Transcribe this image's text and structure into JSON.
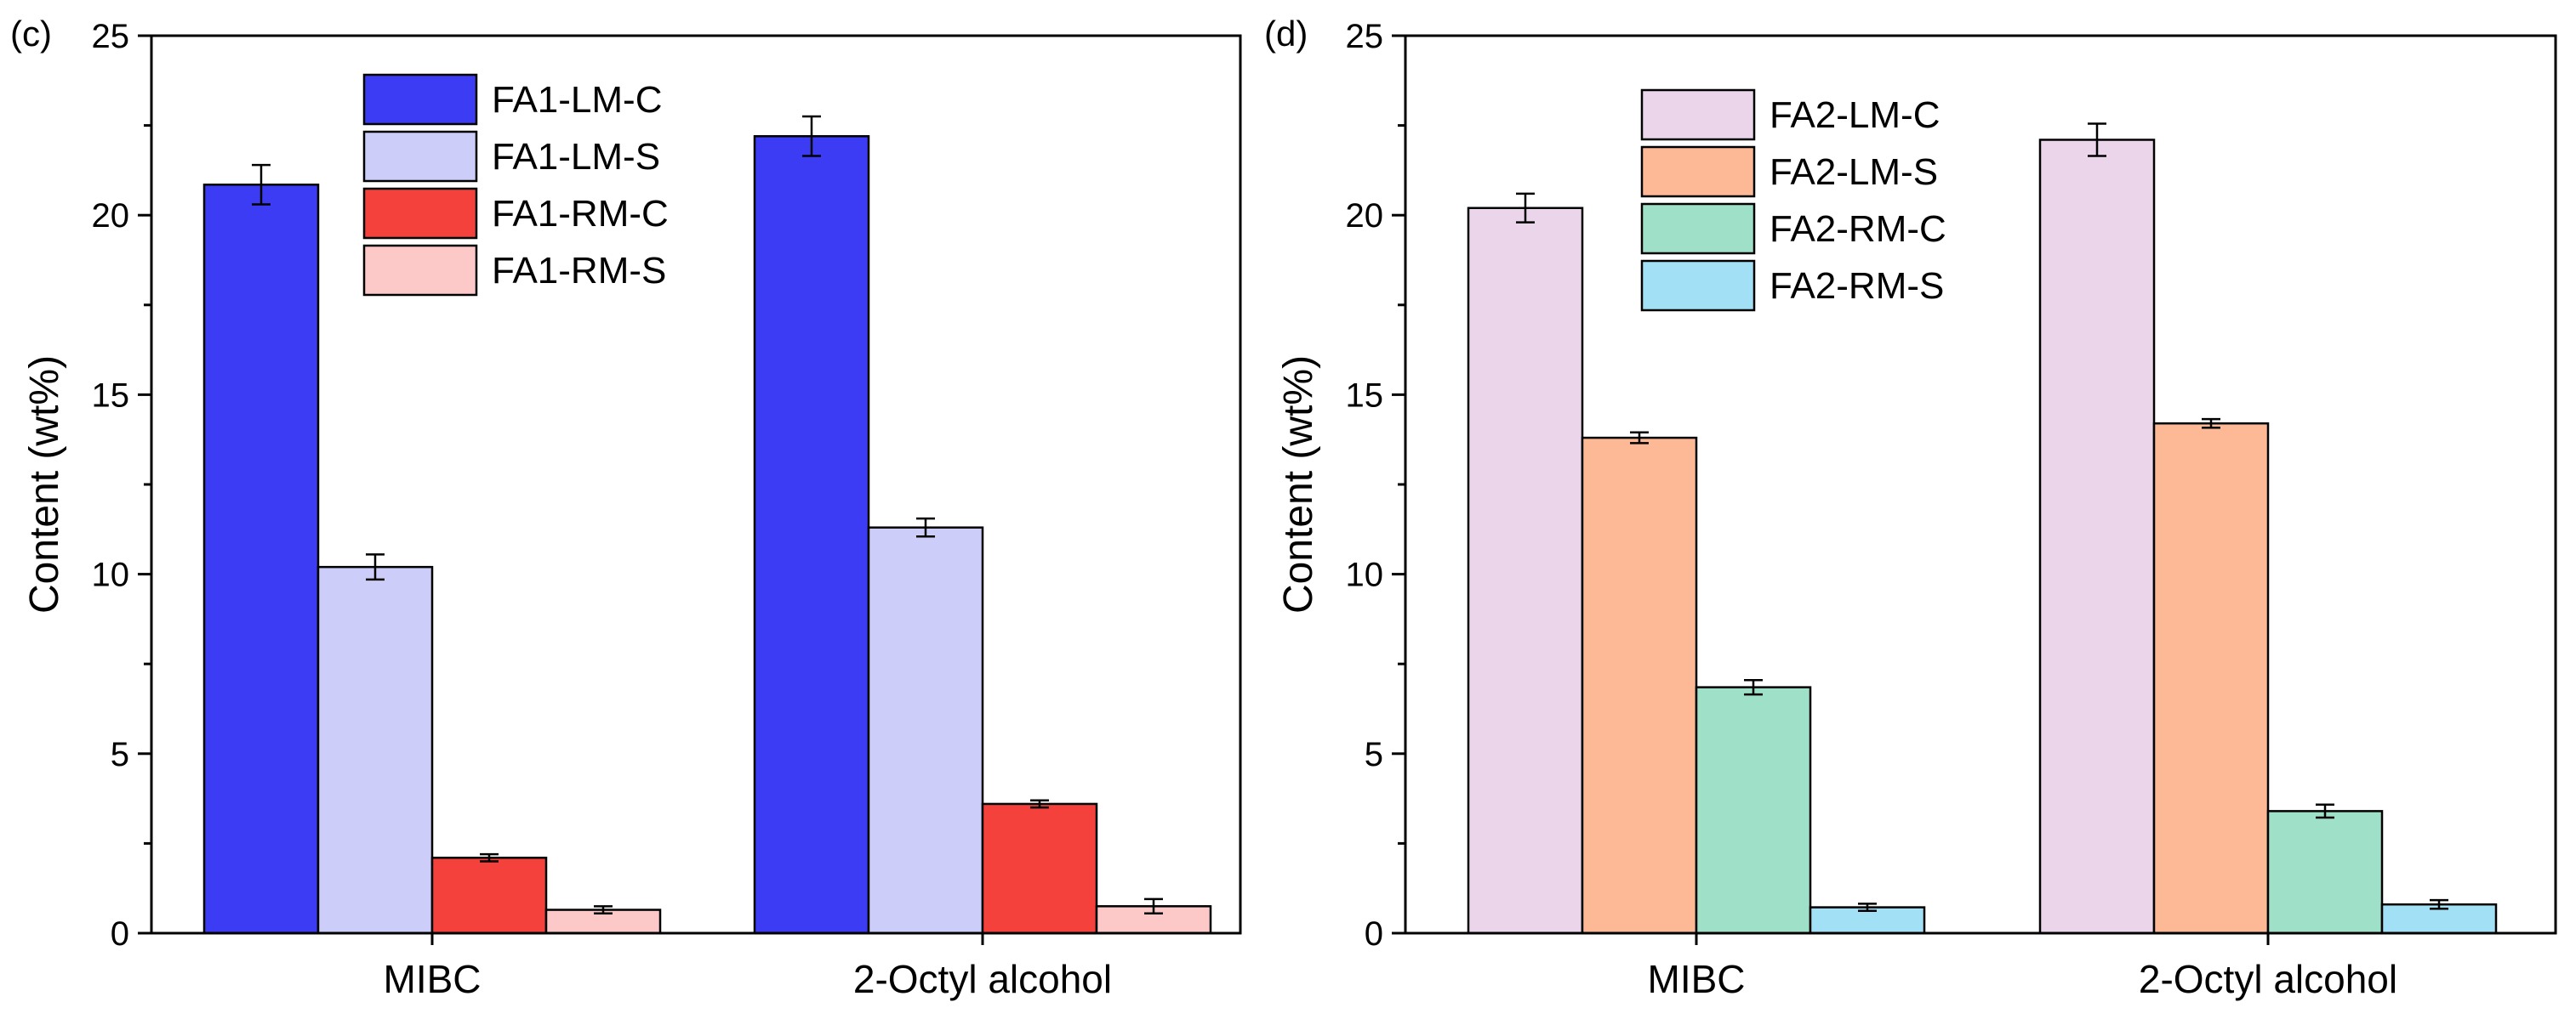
{
  "chart_data": [
    {
      "type": "bar",
      "panel_label": "(c)",
      "ylabel": "Content (wt%)",
      "xlabel": "",
      "ylim": [
        0,
        25
      ],
      "yticks": [
        0,
        5,
        10,
        15,
        20,
        25
      ],
      "categories": [
        "MIBC",
        "2-Octyl alcohol"
      ],
      "legend_position": "top-left",
      "series": [
        {
          "name": "FA1-LM-C",
          "color": "#3c3cf5",
          "values": [
            20.85,
            22.2
          ],
          "errors": [
            0.55,
            0.55
          ]
        },
        {
          "name": "FA1-LM-S",
          "color": "#cdcdf9",
          "values": [
            10.2,
            11.3
          ],
          "errors": [
            0.35,
            0.25
          ]
        },
        {
          "name": "FA1-RM-C",
          "color": "#f5413c",
          "values": [
            2.1,
            3.6
          ],
          "errors": [
            0.1,
            0.1
          ]
        },
        {
          "name": "FA1-RM-S",
          "color": "#fcc9c8",
          "values": [
            0.65,
            0.75
          ],
          "errors": [
            0.1,
            0.2
          ]
        }
      ]
    },
    {
      "type": "bar",
      "panel_label": "(d)",
      "ylabel": "Content (wt%)",
      "xlabel": "",
      "ylim": [
        0,
        25
      ],
      "yticks": [
        0,
        5,
        10,
        15,
        20,
        25
      ],
      "categories": [
        "MIBC",
        "2-Octyl alcohol"
      ],
      "legend_position": "top-left",
      "series": [
        {
          "name": "FA2-LM-C",
          "color": "#ebd5ea",
          "values": [
            20.2,
            22.1
          ],
          "errors": [
            0.4,
            0.45
          ]
        },
        {
          "name": "FA2-LM-S",
          "color": "#fdb995",
          "values": [
            13.8,
            14.2
          ],
          "errors": [
            0.15,
            0.12
          ]
        },
        {
          "name": "FA2-RM-C",
          "color": "#9fe0c8",
          "values": [
            6.85,
            3.4
          ],
          "errors": [
            0.2,
            0.18
          ]
        },
        {
          "name": "FA2-RM-S",
          "color": "#a2e0f6",
          "values": [
            0.72,
            0.8
          ],
          "errors": [
            0.1,
            0.12
          ]
        }
      ]
    }
  ]
}
